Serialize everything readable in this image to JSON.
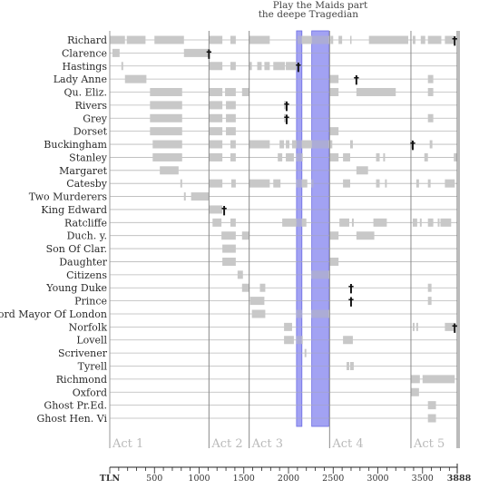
{
  "chart_data": {
    "type": "gantt",
    "x_axis": {
      "unit_label": "TLN",
      "range": [
        0,
        3888
      ],
      "ticks": [
        500,
        1000,
        1500,
        2000,
        2500,
        3000,
        3500
      ],
      "end_label": "3888",
      "minor_step": 100
    },
    "acts": [
      {
        "label": "Act 1",
        "start": 0
      },
      {
        "label": "Act 2",
        "start": 1110
      },
      {
        "label": "Act 3",
        "start": 1560
      },
      {
        "label": "Act 4",
        "start": 2460
      },
      {
        "label": "Act 5",
        "start": 3370
      }
    ],
    "highlights": [
      {
        "label": "the deepe Tragedian",
        "start": 2090,
        "end": 2150
      },
      {
        "label": "Play the Maids part",
        "start": 2260,
        "end": 2450
      }
    ],
    "dagger_symbol": "†",
    "characters": [
      {
        "name": "Richard",
        "segments": [
          [
            0,
            170
          ],
          [
            190,
            400
          ],
          [
            500,
            830
          ],
          [
            1110,
            1260
          ],
          [
            1350,
            1410
          ],
          [
            1560,
            1790
          ],
          [
            2100,
            2460
          ],
          [
            2470,
            2500
          ],
          [
            2560,
            2600
          ],
          [
            2690,
            2700
          ],
          [
            2900,
            3340
          ],
          [
            3390,
            3420
          ],
          [
            3480,
            3530
          ],
          [
            3560,
            3710
          ],
          [
            3750,
            3860
          ]
        ],
        "death": 3860
      },
      {
        "name": "Clarence",
        "segments": [
          [
            30,
            110
          ],
          [
            830,
            1110
          ]
        ],
        "death": 1110
      },
      {
        "name": "Hastings",
        "segments": [
          [
            130,
            150
          ],
          [
            1110,
            1260
          ],
          [
            1350,
            1410
          ],
          [
            1560,
            1590
          ],
          [
            1650,
            1700
          ],
          [
            1730,
            1790
          ],
          [
            1830,
            1960
          ],
          [
            1970,
            2090
          ],
          [
            2100,
            2120
          ]
        ],
        "death": 2110
      },
      {
        "name": "Lady Anne",
        "segments": [
          [
            170,
            410
          ],
          [
            2460,
            2560
          ],
          [
            3560,
            3620
          ]
        ],
        "death": 2760
      },
      {
        "name": "Qu. Eliz.",
        "segments": [
          [
            450,
            810
          ],
          [
            1110,
            1260
          ],
          [
            1290,
            1410
          ],
          [
            1480,
            1560
          ],
          [
            2460,
            2560
          ],
          [
            2760,
            3200
          ],
          [
            3560,
            3620
          ]
        ]
      },
      {
        "name": "Rivers",
        "segments": [
          [
            450,
            810
          ],
          [
            1110,
            1260
          ],
          [
            1300,
            1410
          ],
          [
            1950,
            1990
          ]
        ],
        "death": 1980
      },
      {
        "name": "Grey",
        "segments": [
          [
            450,
            810
          ],
          [
            1110,
            1260
          ],
          [
            1300,
            1410
          ],
          [
            1950,
            1990
          ],
          [
            3560,
            3620
          ]
        ],
        "death": 1980
      },
      {
        "name": "Dorset",
        "segments": [
          [
            450,
            810
          ],
          [
            1110,
            1260
          ],
          [
            1300,
            1410
          ],
          [
            2460,
            2560
          ]
        ]
      },
      {
        "name": "Buckingham",
        "segments": [
          [
            480,
            810
          ],
          [
            1110,
            1260
          ],
          [
            1350,
            1410
          ],
          [
            1560,
            1790
          ],
          [
            1900,
            1950
          ],
          [
            1970,
            2010
          ],
          [
            2040,
            2090
          ],
          [
            2090,
            2460
          ],
          [
            2460,
            2490
          ],
          [
            2690,
            2720
          ],
          [
            3370,
            3390
          ],
          [
            3580,
            3610
          ]
        ],
        "death": 3390
      },
      {
        "name": "Stanley",
        "segments": [
          [
            480,
            810
          ],
          [
            1110,
            1260
          ],
          [
            1350,
            1410
          ],
          [
            1880,
            1930
          ],
          [
            1970,
            2060
          ],
          [
            2090,
            2160
          ],
          [
            2460,
            2560
          ],
          [
            2610,
            2690
          ],
          [
            2980,
            3020
          ],
          [
            3060,
            3080
          ],
          [
            3520,
            3560
          ],
          [
            3850,
            3888
          ]
        ]
      },
      {
        "name": "Margaret",
        "segments": [
          [
            560,
            770
          ],
          [
            2760,
            2890
          ]
        ]
      },
      {
        "name": "Catesby",
        "segments": [
          [
            790,
            810
          ],
          [
            1110,
            1260
          ],
          [
            1360,
            1410
          ],
          [
            1560,
            1790
          ],
          [
            1830,
            1910
          ],
          [
            2090,
            2210
          ],
          [
            2260,
            2280
          ],
          [
            2610,
            2690
          ],
          [
            2980,
            3020
          ],
          [
            3080,
            3100
          ],
          [
            3430,
            3460
          ],
          [
            3560,
            3590
          ],
          [
            3750,
            3860
          ]
        ]
      },
      {
        "name": "Two Murderers",
        "segments": [
          [
            830,
            850
          ],
          [
            910,
            1110
          ]
        ]
      },
      {
        "name": "King Edward",
        "segments": [
          [
            1110,
            1260
          ]
        ],
        "death": 1280
      },
      {
        "name": "Ratcliffe",
        "segments": [
          [
            1150,
            1250
          ],
          [
            1350,
            1410
          ],
          [
            1930,
            2090
          ],
          [
            2090,
            2200
          ],
          [
            2570,
            2680
          ],
          [
            2710,
            2730
          ],
          [
            2950,
            3100
          ],
          [
            3390,
            3440
          ],
          [
            3470,
            3490
          ],
          [
            3560,
            3620
          ],
          [
            3670,
            3690
          ],
          [
            3700,
            3820
          ]
        ]
      },
      {
        "name": "Duch. y.",
        "segments": [
          [
            1250,
            1410
          ],
          [
            1480,
            1560
          ],
          [
            2460,
            2560
          ],
          [
            2760,
            2960
          ]
        ]
      },
      {
        "name": "Son Of Clar.",
        "segments": [
          [
            1260,
            1410
          ]
        ]
      },
      {
        "name": "Daughter",
        "segments": [
          [
            1260,
            1410
          ],
          [
            2460,
            2560
          ]
        ]
      },
      {
        "name": "Citizens",
        "segments": [
          [
            1430,
            1490
          ],
          [
            2260,
            2460
          ]
        ]
      },
      {
        "name": "Young Duke",
        "segments": [
          [
            1480,
            1560
          ],
          [
            1680,
            1740
          ],
          [
            3560,
            3600
          ]
        ],
        "death": 2700
      },
      {
        "name": "Prince",
        "segments": [
          [
            1570,
            1730
          ],
          [
            3560,
            3600
          ]
        ],
        "death": 2700
      },
      {
        "name": "Lord Mayor Of London",
        "segments": [
          [
            1590,
            1740
          ],
          [
            2090,
            2150
          ],
          [
            2260,
            2460
          ]
        ]
      },
      {
        "name": "Norfolk",
        "segments": [
          [
            1950,
            2040
          ],
          [
            3390,
            3410
          ],
          [
            3430,
            3450
          ],
          [
            3750,
            3860
          ]
        ],
        "death": 3860
      },
      {
        "name": "Lovell",
        "segments": [
          [
            1950,
            2060
          ],
          [
            2090,
            2160
          ],
          [
            2610,
            2720
          ]
        ]
      },
      {
        "name": "Scrivener",
        "segments": [
          [
            2180,
            2200
          ]
        ]
      },
      {
        "name": "Tyrell",
        "segments": [
          [
            2650,
            2680
          ],
          [
            2690,
            2730
          ]
        ]
      },
      {
        "name": "Richmond",
        "segments": [
          [
            3370,
            3470
          ],
          [
            3500,
            3860
          ]
        ]
      },
      {
        "name": "Oxford",
        "segments": [
          [
            3370,
            3460
          ]
        ]
      },
      {
        "name": "Ghost Pr.Ed.",
        "segments": [
          [
            3560,
            3650
          ]
        ]
      },
      {
        "name": "Ghost Hen. Vi",
        "segments": [
          [
            3560,
            3650
          ]
        ]
      }
    ]
  }
}
